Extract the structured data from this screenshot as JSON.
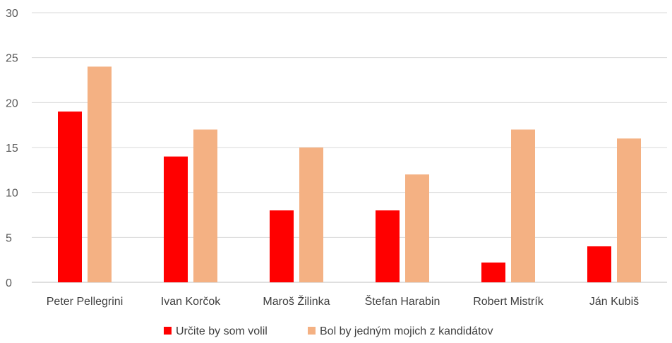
{
  "chart_data": {
    "type": "bar",
    "categories": [
      "Peter Pellegrini",
      "Ivan Korčok",
      "Maroš Žilinka",
      "Štefan Harabin",
      "Robert Mistrík",
      "Ján Kubiš"
    ],
    "series": [
      {
        "name": "Určite by som volil",
        "values": [
          19,
          14,
          8,
          8,
          2.2,
          4
        ],
        "color": "#ff0000"
      },
      {
        "name": "Bol by jedným mojich z kandidátov",
        "values": [
          24,
          17,
          15,
          12,
          17,
          16
        ],
        "color": "#f4b183"
      }
    ],
    "yticks": [
      0,
      5,
      10,
      15,
      20,
      25,
      30
    ],
    "ylim": [
      0,
      30
    ],
    "grid": true,
    "legend": "bottom",
    "title": "",
    "xlabel": "",
    "ylabel": ""
  }
}
